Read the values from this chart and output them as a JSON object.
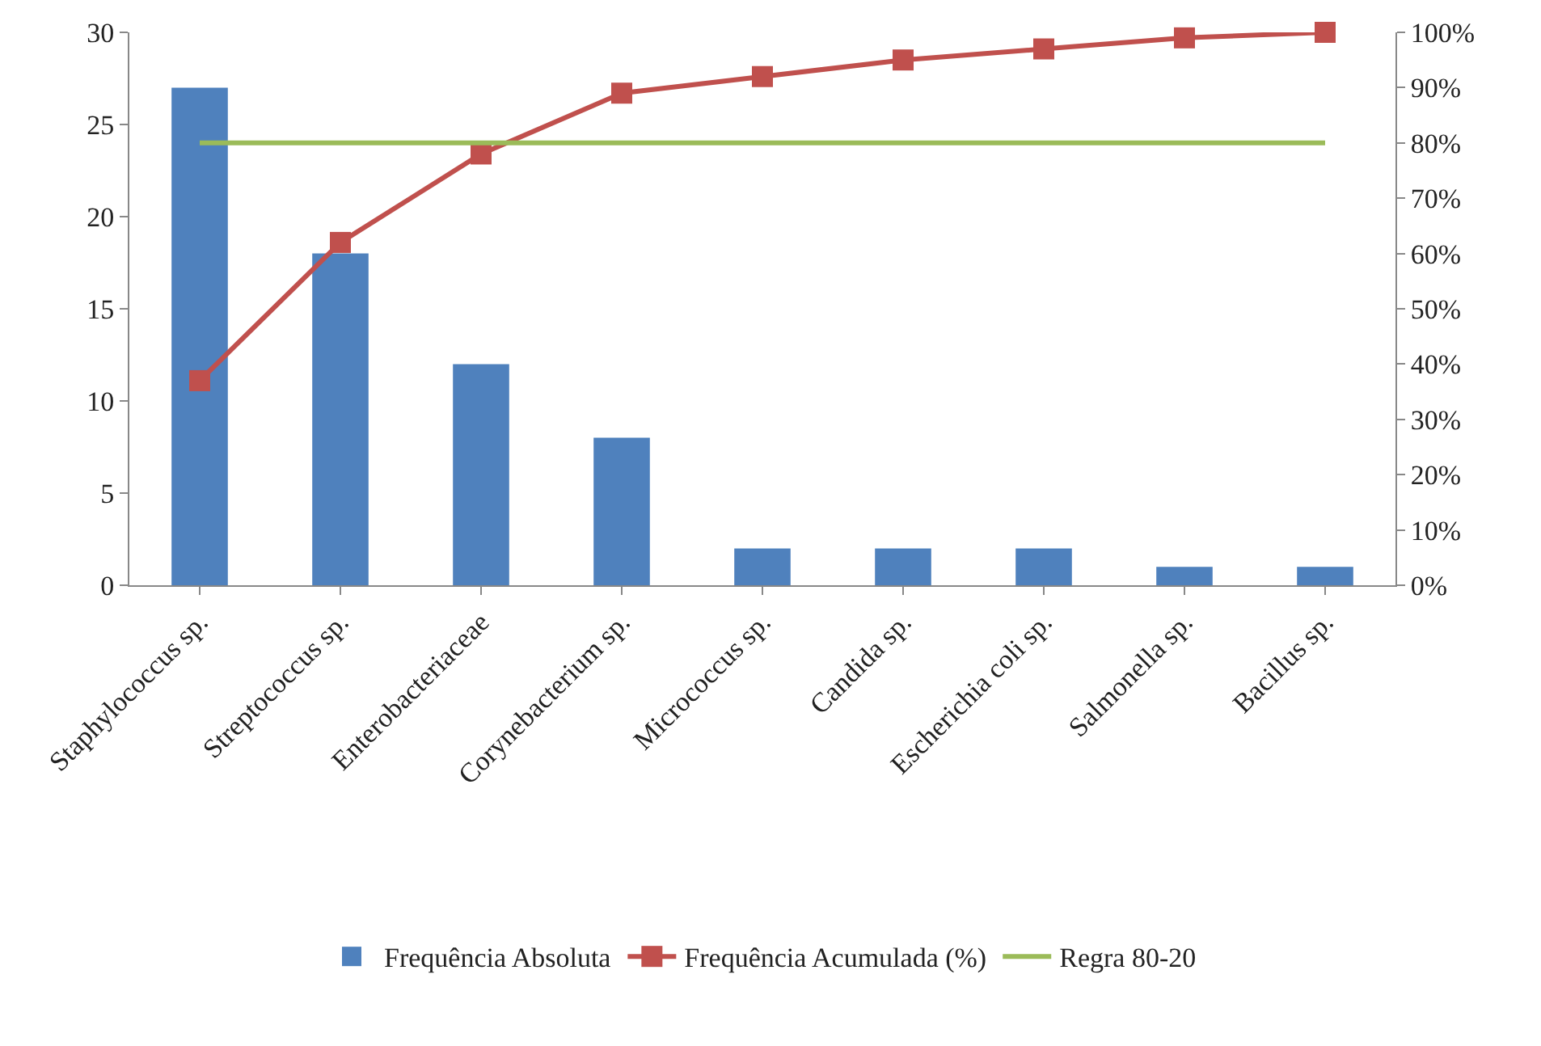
{
  "chart_data": {
    "type": "bar",
    "categories": [
      "Staphylococcus sp.",
      "Streptococcus sp.",
      "Enterobacteriaceae",
      "Corynebacterium sp.",
      "Micrococcus sp.",
      "Candida sp.",
      "Escherichia coli sp.",
      "Salmonella sp.",
      "Bacillus sp."
    ],
    "series": [
      {
        "name": "Frequência Absoluta",
        "color": "#4f81bd",
        "values": [
          27,
          18,
          12,
          8,
          2,
          2,
          2,
          1,
          1
        ]
      },
      {
        "name": "Frequência Acumulada (%)",
        "type": "line",
        "axis": "y2",
        "marker": "square",
        "color": "#c0504d",
        "values": [
          37,
          62,
          78,
          89,
          92,
          95,
          97,
          99,
          100
        ]
      },
      {
        "name": "Regra 80-20",
        "type": "line",
        "axis": "y2",
        "marker": "none",
        "color": "#9bbb59",
        "values": [
          80,
          80,
          80,
          80,
          80,
          80,
          80,
          80,
          80
        ]
      }
    ],
    "ylim": [
      0,
      30
    ],
    "yticks": [
      0,
      5,
      10,
      15,
      20,
      25,
      30
    ],
    "y2lim": [
      0,
      100
    ],
    "y2ticks": [
      {
        "value": 0,
        "label": "0%"
      },
      {
        "value": 10,
        "label": "10%"
      },
      {
        "value": 20,
        "label": "20%"
      },
      {
        "value": 30,
        "label": "30%"
      },
      {
        "value": 40,
        "label": "40%"
      },
      {
        "value": 50,
        "label": "50%"
      },
      {
        "value": 60,
        "label": "60%"
      },
      {
        "value": 70,
        "label": "70%"
      },
      {
        "value": 80,
        "label": "80%"
      },
      {
        "value": 90,
        "label": "90%"
      },
      {
        "value": 100,
        "label": "100%"
      }
    ],
    "grid": false,
    "legend": "bottom"
  }
}
